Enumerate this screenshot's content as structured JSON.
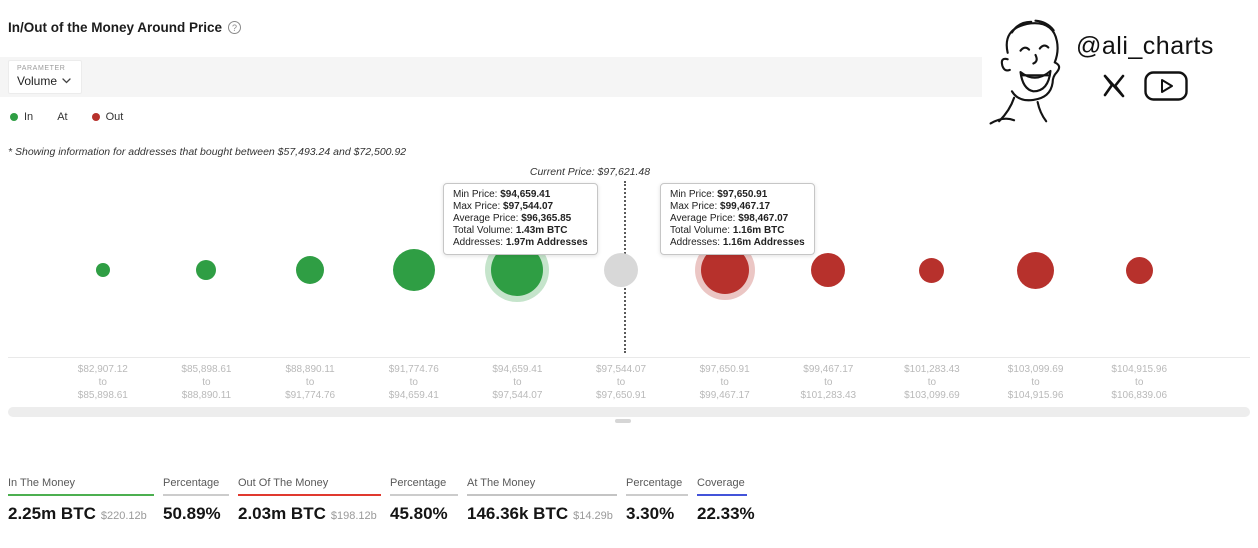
{
  "page": {
    "title": "In/Out of the Money Around Price",
    "note": "* Showing information for addresses that bought between $57,493.24 and $72,500.92"
  },
  "parameter": {
    "label": "PARAMETER",
    "value": "Volume"
  },
  "legend": {
    "items": [
      {
        "label": "In",
        "color": "#2f9e44",
        "marker": true
      },
      {
        "label": "At",
        "color": "#d8d8d8",
        "marker": false
      },
      {
        "label": "Out",
        "color": "#b7312c",
        "marker": true
      }
    ]
  },
  "watermark": {
    "handle": "@ali_charts"
  },
  "chart_data": {
    "type": "bubble",
    "title": "In/Out of the Money Around Price",
    "parameter": "Volume",
    "current_price_label": "Current Price: $97,621.48",
    "current_price": 97621.48,
    "legend": [
      "In",
      "At",
      "Out"
    ],
    "colors": {
      "in": "#2f9e44",
      "at": "#d8d8d8",
      "out": "#b7312c"
    },
    "buckets": [
      {
        "from": "$82,907.12",
        "to": "$85,898.61",
        "status": "in",
        "diameter": 14
      },
      {
        "from": "$85,898.61",
        "to": "$88,890.11",
        "status": "in",
        "diameter": 20
      },
      {
        "from": "$88,890.11",
        "to": "$91,774.76",
        "status": "in",
        "diameter": 28
      },
      {
        "from": "$91,774.76",
        "to": "$94,659.41",
        "status": "in",
        "diameter": 42
      },
      {
        "from": "$94,659.41",
        "to": "$97,544.07",
        "status": "in",
        "diameter": 52,
        "highlighted": true,
        "average_price": "$96,365.85",
        "total_volume": "1.43m BTC",
        "addresses": "1.97m Addresses"
      },
      {
        "from": "$97,544.07",
        "to": "$97,650.91",
        "status": "at",
        "diameter": 34
      },
      {
        "from": "$97,650.91",
        "to": "$99,467.17",
        "status": "out",
        "diameter": 48,
        "highlighted": true,
        "average_price": "$98,467.07",
        "total_volume": "1.16m BTC",
        "addresses": "1.16m Addresses"
      },
      {
        "from": "$99,467.17",
        "to": "$101,283.43",
        "status": "out",
        "diameter": 34
      },
      {
        "from": "$101,283.43",
        "to": "$103,099.69",
        "status": "out",
        "diameter": 25
      },
      {
        "from": "$103,099.69",
        "to": "$104,915.96",
        "status": "out",
        "diameter": 37
      },
      {
        "from": "$104,915.96",
        "to": "$106,839.06",
        "status": "out",
        "diameter": 27
      }
    ],
    "tooltips": [
      {
        "anchor_index": 4,
        "rows": [
          {
            "label": "Min Price:",
            "value": "$94,659.41"
          },
          {
            "label": "Max Price:",
            "value": "$97,544.07"
          },
          {
            "label": "Average Price:",
            "value": "$96,365.85"
          },
          {
            "label": "Total Volume:",
            "value": "1.43m BTC"
          },
          {
            "label": "Addresses:",
            "value": "1.97m Addresses"
          }
        ]
      },
      {
        "anchor_index": 6,
        "rows": [
          {
            "label": "Min Price:",
            "value": "$97,650.91"
          },
          {
            "label": "Max Price:",
            "value": "$99,467.17"
          },
          {
            "label": "Average Price:",
            "value": "$98,467.07"
          },
          {
            "label": "Total Volume:",
            "value": "1.16m BTC"
          },
          {
            "label": "Addresses:",
            "value": "1.16m Addresses"
          }
        ]
      }
    ]
  },
  "stats": {
    "columns": [
      {
        "label": "In The Money",
        "underline": "#4caf50",
        "value": "2.25m BTC",
        "sub": "$220.12b"
      },
      {
        "label": "Percentage",
        "underline": "#cccccc",
        "value": "50.89%"
      },
      {
        "label": "Out Of The Money",
        "underline": "#e0392f",
        "value": "2.03m BTC",
        "sub": "$198.12b"
      },
      {
        "label": "Percentage",
        "underline": "#cccccc",
        "value": "45.80%"
      },
      {
        "label": "At The Money",
        "underline": "#c4c4c4",
        "value": "146.36k BTC",
        "sub": "$14.29b"
      },
      {
        "label": "Percentage",
        "underline": "#cccccc",
        "value": "3.30%"
      },
      {
        "label": "Coverage",
        "underline": "#4353d9",
        "value": "22.33%"
      }
    ]
  }
}
